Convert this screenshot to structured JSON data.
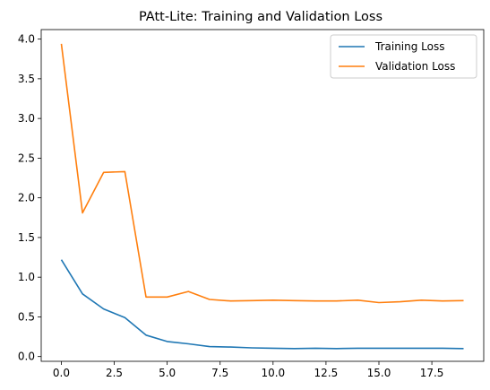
{
  "chart_data": {
    "type": "line",
    "title": "PAtt-Lite: Training and Validation Loss",
    "xlabel": "",
    "ylabel": "",
    "xlim": [
      -0.95,
      19.95
    ],
    "ylim": [
      -0.06,
      4.12
    ],
    "xticks": [
      0.0,
      2.5,
      5.0,
      7.5,
      10.0,
      12.5,
      15.0,
      17.5
    ],
    "xtick_labels": [
      "0.0",
      "2.5",
      "5.0",
      "7.5",
      "10.0",
      "12.5",
      "15.0",
      "17.5"
    ],
    "yticks": [
      0.0,
      0.5,
      1.0,
      1.5,
      2.0,
      2.5,
      3.0,
      3.5,
      4.0
    ],
    "ytick_labels": [
      "0.0",
      "0.5",
      "1.0",
      "1.5",
      "2.0",
      "2.5",
      "3.0",
      "3.5",
      "4.0"
    ],
    "grid": false,
    "legend_position": "top-right",
    "x": [
      0,
      1,
      2,
      3,
      4,
      5,
      6,
      7,
      8,
      9,
      10,
      11,
      12,
      13,
      14,
      15,
      16,
      17,
      18,
      19
    ],
    "series": [
      {
        "name": "Training Loss",
        "color": "#1f77b4",
        "values": [
          1.22,
          0.79,
          0.6,
          0.49,
          0.27,
          0.19,
          0.16,
          0.125,
          0.12,
          0.11,
          0.105,
          0.1,
          0.105,
          0.1,
          0.105,
          0.105,
          0.105,
          0.105,
          0.105,
          0.1
        ]
      },
      {
        "name": "Validation Loss",
        "color": "#ff7f0e",
        "values": [
          3.94,
          1.81,
          2.32,
          2.33,
          0.75,
          0.75,
          0.82,
          0.72,
          0.7,
          0.705,
          0.71,
          0.705,
          0.7,
          0.7,
          0.71,
          0.68,
          0.69,
          0.71,
          0.7,
          0.705
        ]
      }
    ]
  }
}
